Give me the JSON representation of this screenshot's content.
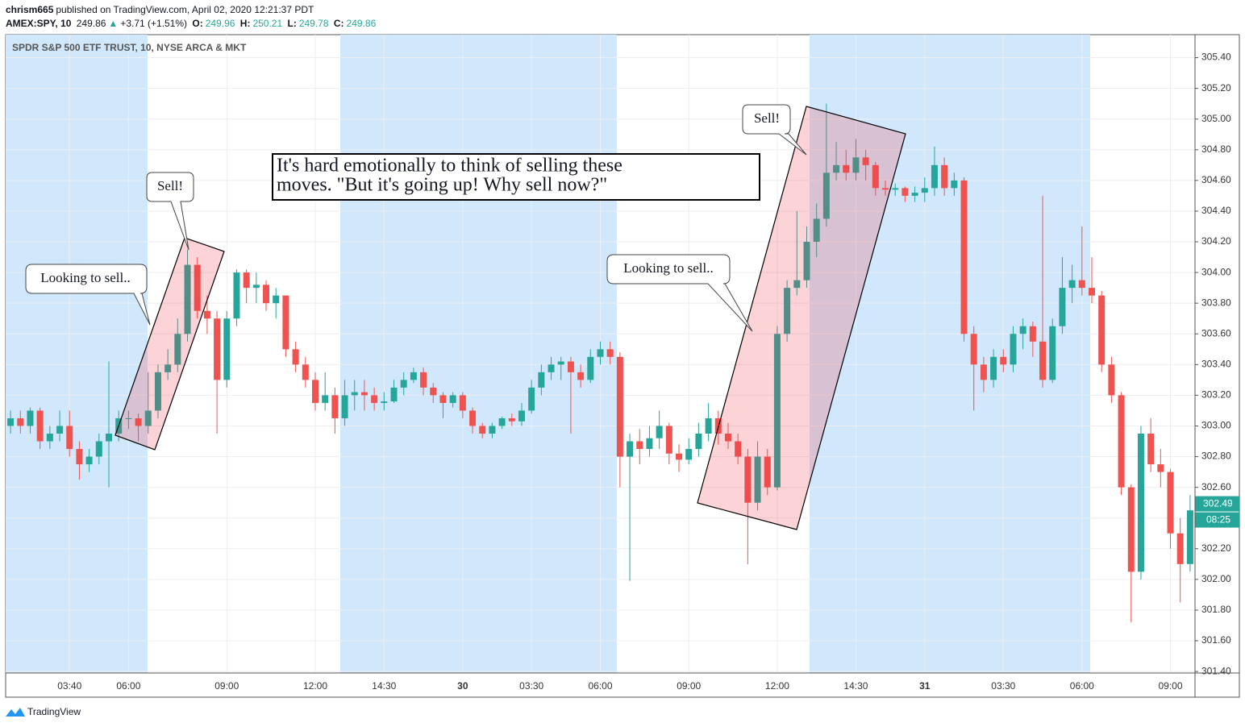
{
  "header": {
    "author": "chrism665",
    "published": "published on TradingView.com, April 02, 2020 12:21:37 PDT",
    "symbol": "AMEX:SPY, 10",
    "price": 249.86,
    "arrow": "▲",
    "change": "+3.71 (+1.51%)",
    "o_label": "O:",
    "open": 249.96,
    "h_label": "H:",
    "high": 250.21,
    "l_label": "L:",
    "low": 249.78,
    "c_label": "C:",
    "close": 249.86
  },
  "footer": {
    "brand": "TradingView"
  },
  "chart_data": {
    "type": "candlestick",
    "title": "SPDR S&P 500 ETF TRUST, 10, NYSE ARCA & MKT",
    "up_color": "#26a69a",
    "down_color": "#ef5350",
    "grid": true,
    "categories": [
      null,
      null,
      null,
      null,
      null,
      null,
      "03:40",
      null,
      null,
      null,
      null,
      null,
      "06:00",
      null,
      null,
      null,
      null,
      null,
      null,
      null,
      null,
      null,
      "09:00",
      null,
      null,
      null,
      null,
      null,
      null,
      null,
      null,
      "12:00",
      null,
      null,
      null,
      null,
      null,
      null,
      "14:30",
      null,
      null,
      null,
      null,
      null,
      null,
      null,
      "30",
      null,
      null,
      null,
      null,
      null,
      null,
      "03:30",
      null,
      null,
      null,
      null,
      null,
      null,
      "06:00",
      null,
      null,
      null,
      null,
      null,
      null,
      null,
      null,
      "09:00",
      null,
      null,
      null,
      null,
      null,
      null,
      null,
      null,
      "12:00",
      null,
      null,
      null,
      null,
      null,
      null,
      null,
      "14:30",
      null,
      null,
      null,
      null,
      null,
      null,
      "31",
      null,
      null,
      null,
      null,
      null,
      null,
      null,
      "03:30",
      null,
      null,
      null,
      null,
      null,
      null,
      null,
      "06:00",
      null,
      null,
      null,
      null,
      null,
      null,
      null,
      null,
      "09:00",
      null,
      null
    ],
    "ohlc": [
      [
        303.0,
        303.1,
        302.95,
        303.05
      ],
      [
        303.05,
        303.1,
        302.95,
        303.0
      ],
      [
        303.0,
        303.12,
        302.95,
        303.1
      ],
      [
        303.1,
        303.12,
        302.85,
        302.9
      ],
      [
        302.9,
        303.0,
        302.85,
        302.95
      ],
      [
        302.95,
        303.1,
        302.9,
        303.0
      ],
      [
        303.0,
        303.1,
        302.8,
        302.85
      ],
      [
        302.85,
        302.9,
        302.65,
        302.75
      ],
      [
        302.75,
        302.85,
        302.7,
        302.8
      ],
      [
        302.8,
        302.95,
        302.75,
        302.9
      ],
      [
        302.9,
        303.42,
        302.6,
        302.95
      ],
      [
        302.95,
        303.1,
        302.9,
        303.05
      ],
      [
        303.05,
        303.1,
        302.98,
        303.05
      ],
      [
        303.05,
        303.08,
        302.9,
        303.0
      ],
      [
        303.0,
        303.35,
        302.95,
        303.1
      ],
      [
        303.1,
        303.4,
        303.05,
        303.35
      ],
      [
        303.35,
        303.5,
        303.3,
        303.4
      ],
      [
        303.4,
        303.7,
        303.35,
        303.6
      ],
      [
        303.6,
        304.15,
        303.55,
        304.05
      ],
      [
        304.05,
        304.1,
        303.7,
        303.75
      ],
      [
        303.75,
        303.85,
        303.6,
        303.7
      ],
      [
        303.7,
        303.75,
        302.95,
        303.3
      ],
      [
        303.3,
        303.75,
        303.25,
        303.7
      ],
      [
        303.7,
        304.02,
        303.65,
        304.0
      ],
      [
        304.0,
        304.02,
        303.8,
        303.9
      ],
      [
        303.9,
        304.0,
        303.8,
        303.92
      ],
      [
        303.92,
        303.95,
        303.75,
        303.8
      ],
      [
        303.8,
        303.9,
        303.7,
        303.85
      ],
      [
        303.85,
        303.85,
        303.45,
        303.5
      ],
      [
        303.5,
        303.55,
        303.35,
        303.4
      ],
      [
        303.4,
        303.45,
        303.25,
        303.3
      ],
      [
        303.3,
        303.35,
        303.1,
        303.15
      ],
      [
        303.15,
        303.35,
        303.1,
        303.2
      ],
      [
        303.2,
        303.25,
        302.95,
        303.05
      ],
      [
        303.05,
        303.3,
        303.0,
        303.2
      ],
      [
        303.2,
        303.3,
        303.1,
        303.22
      ],
      [
        303.22,
        303.3,
        303.1,
        303.2
      ],
      [
        303.2,
        303.25,
        303.1,
        303.15
      ],
      [
        303.15,
        303.22,
        303.1,
        303.16
      ],
      [
        303.16,
        303.3,
        303.15,
        303.25
      ],
      [
        303.25,
        303.35,
        303.2,
        303.3
      ],
      [
        303.3,
        303.38,
        303.28,
        303.35
      ],
      [
        303.35,
        303.38,
        303.2,
        303.25
      ],
      [
        303.25,
        303.28,
        303.15,
        303.2
      ],
      [
        303.2,
        303.22,
        303.05,
        303.15
      ],
      [
        303.15,
        303.22,
        303.12,
        303.2
      ],
      [
        303.2,
        303.22,
        303.05,
        303.1
      ],
      [
        303.1,
        303.12,
        302.95,
        303.0
      ],
      [
        303.0,
        303.02,
        302.92,
        302.95
      ],
      [
        302.95,
        303.02,
        302.92,
        303.0
      ],
      [
        303.0,
        303.06,
        302.98,
        303.05
      ],
      [
        303.05,
        303.08,
        303.0,
        303.03
      ],
      [
        303.03,
        303.15,
        303.0,
        303.1
      ],
      [
        303.1,
        303.3,
        303.08,
        303.25
      ],
      [
        303.25,
        303.4,
        303.2,
        303.35
      ],
      [
        303.35,
        303.45,
        303.3,
        303.4
      ],
      [
        303.4,
        303.45,
        303.3,
        303.42
      ],
      [
        303.42,
        303.45,
        302.95,
        303.35
      ],
      [
        303.35,
        303.4,
        303.25,
        303.3
      ],
      [
        303.3,
        303.5,
        303.28,
        303.45
      ],
      [
        303.45,
        303.55,
        303.4,
        303.5
      ],
      [
        303.5,
        303.55,
        303.4,
        303.45
      ],
      [
        303.45,
        303.48,
        302.6,
        302.8
      ],
      [
        302.8,
        302.95,
        301.99,
        302.9
      ],
      [
        302.9,
        302.98,
        302.75,
        302.85
      ],
      [
        302.85,
        303.0,
        302.8,
        302.92
      ],
      [
        302.92,
        303.1,
        302.85,
        303.0
      ],
      [
        303.0,
        303.02,
        302.75,
        302.82
      ],
      [
        302.82,
        302.88,
        302.7,
        302.78
      ],
      [
        302.78,
        302.92,
        302.75,
        302.85
      ],
      [
        302.85,
        303.02,
        302.8,
        302.95
      ],
      [
        302.95,
        303.15,
        302.9,
        303.05
      ],
      [
        303.05,
        303.1,
        302.88,
        302.95
      ],
      [
        302.95,
        303.02,
        302.85,
        302.9
      ],
      [
        302.9,
        302.95,
        302.75,
        302.8
      ],
      [
        302.8,
        302.85,
        302.1,
        302.5
      ],
      [
        302.5,
        302.9,
        302.45,
        302.8
      ],
      [
        302.8,
        302.85,
        302.55,
        302.6
      ],
      [
        302.6,
        303.65,
        302.58,
        303.6
      ],
      [
        303.6,
        303.95,
        303.55,
        303.9
      ],
      [
        303.9,
        304.4,
        303.85,
        303.95
      ],
      [
        303.95,
        304.3,
        303.9,
        304.2
      ],
      [
        304.2,
        304.45,
        304.1,
        304.35
      ],
      [
        304.35,
        305.1,
        304.3,
        304.65
      ],
      [
        304.65,
        304.85,
        304.6,
        304.7
      ],
      [
        304.7,
        304.8,
        304.6,
        304.65
      ],
      [
        304.65,
        304.87,
        304.6,
        304.75
      ],
      [
        304.75,
        304.8,
        304.6,
        304.7
      ],
      [
        304.7,
        304.72,
        304.5,
        304.55
      ],
      [
        304.55,
        304.6,
        304.5,
        304.54
      ],
      [
        304.54,
        304.58,
        304.5,
        304.55
      ],
      [
        304.55,
        304.56,
        304.46,
        304.5
      ],
      [
        304.5,
        304.56,
        304.46,
        304.52
      ],
      [
        304.52,
        304.62,
        304.46,
        304.55
      ],
      [
        304.55,
        304.82,
        304.5,
        304.7
      ],
      [
        304.7,
        304.75,
        304.5,
        304.55
      ],
      [
        304.55,
        304.65,
        304.5,
        304.6
      ],
      [
        304.6,
        304.62,
        303.55,
        303.6
      ],
      [
        303.6,
        303.65,
        303.1,
        303.4
      ],
      [
        303.4,
        303.45,
        303.22,
        303.3
      ],
      [
        303.3,
        303.5,
        303.25,
        303.45
      ],
      [
        303.45,
        303.5,
        303.35,
        303.4
      ],
      [
        303.4,
        303.65,
        303.35,
        303.6
      ],
      [
        303.6,
        303.7,
        303.5,
        303.65
      ],
      [
        303.65,
        303.68,
        303.45,
        303.55
      ],
      [
        303.55,
        304.5,
        303.25,
        303.3
      ],
      [
        303.3,
        303.7,
        303.28,
        303.65
      ],
      [
        303.65,
        304.1,
        303.6,
        303.9
      ],
      [
        303.9,
        304.05,
        303.8,
        303.95
      ],
      [
        303.95,
        304.3,
        303.85,
        303.9
      ],
      [
        303.9,
        304.1,
        303.8,
        303.85
      ],
      [
        303.85,
        303.88,
        303.35,
        303.4
      ],
      [
        303.4,
        303.45,
        303.15,
        303.2
      ],
      [
        303.2,
        303.22,
        302.55,
        302.6
      ],
      [
        302.6,
        302.62,
        301.72,
        302.05
      ],
      [
        302.05,
        303.0,
        302.0,
        302.95
      ],
      [
        302.95,
        303.05,
        302.7,
        302.75
      ],
      [
        302.75,
        302.85,
        302.6,
        302.7
      ],
      [
        302.7,
        302.72,
        302.2,
        302.3
      ],
      [
        302.3,
        302.4,
        301.85,
        302.1
      ],
      [
        302.1,
        302.55,
        302.05,
        302.45
      ]
    ],
    "ylim": [
      301.39,
      305.55
    ],
    "yticks": [
      {
        "value": 301.4,
        "label": "301.40"
      },
      {
        "value": 301.6,
        "label": "301.60"
      },
      {
        "value": 301.8,
        "label": "301.80"
      },
      {
        "value": 302.0,
        "label": "302.00"
      },
      {
        "value": 302.2,
        "label": "302.20"
      },
      {
        "value": 302.4,
        "label": "302.40"
      },
      {
        "value": 302.6,
        "label": "302.60"
      },
      {
        "value": 302.8,
        "label": "302.80"
      },
      {
        "value": 303.0,
        "label": "303.00"
      },
      {
        "value": 303.2,
        "label": "303.20"
      },
      {
        "value": 303.4,
        "label": "303.40"
      },
      {
        "value": 303.6,
        "label": "303.60"
      },
      {
        "value": 303.8,
        "label": "303.80"
      },
      {
        "value": 304.0,
        "label": "304.00"
      },
      {
        "value": 304.2,
        "label": "304.20"
      },
      {
        "value": 304.4,
        "label": "304.40"
      },
      {
        "value": 304.6,
        "label": "304.60"
      },
      {
        "value": 304.8,
        "label": "304.80"
      },
      {
        "value": 305.0,
        "label": "305.00"
      },
      {
        "value": 305.2,
        "label": "305.20"
      },
      {
        "value": 305.4,
        "label": "305.40"
      }
    ],
    "last_price": 302.49,
    "countdown": "08:25",
    "annotations": {
      "note": [
        "It's hard emotionally to think of selling these",
        "moves. \"But it's going up! Why sell now?\""
      ],
      "callouts": [
        "Looking to sell..",
        "Sell!",
        "Looking to sell..",
        "Sell!"
      ]
    }
  }
}
